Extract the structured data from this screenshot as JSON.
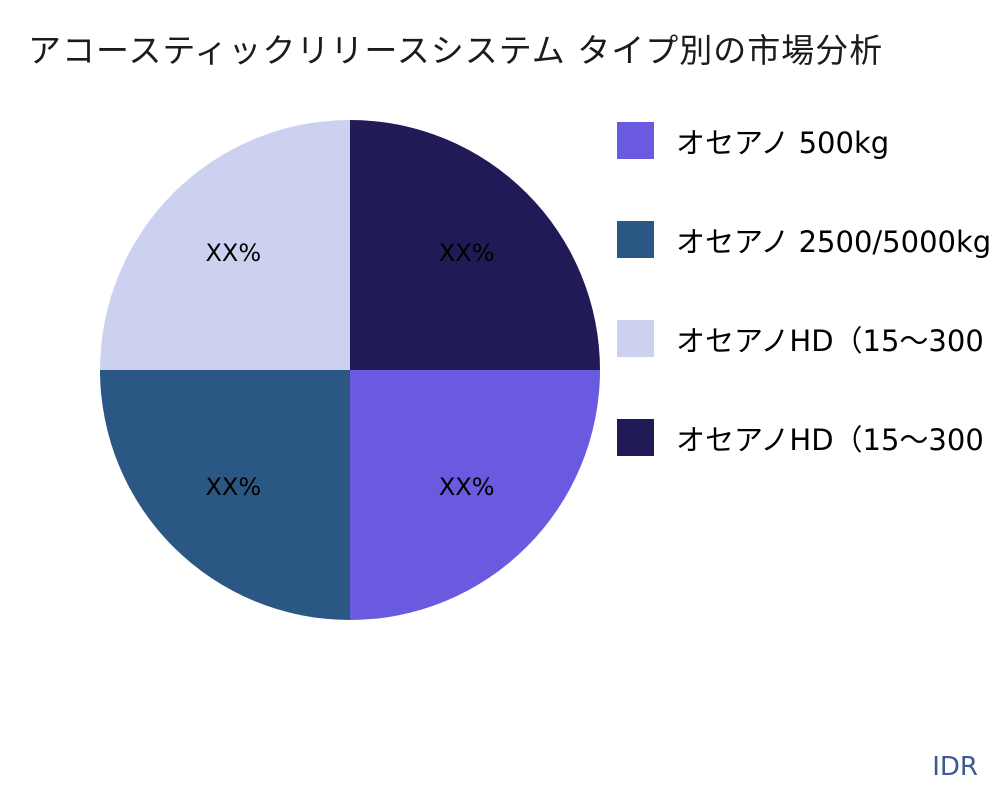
{
  "chart_data": {
    "type": "pie",
    "title": "アコースティックリリースシステム タイプ別の市場分析",
    "legend_position": "right",
    "direction": "clockwise",
    "start_angle_deg": 90,
    "slices": [
      {
        "legend_label": "オセアノ 500kg",
        "value_pct": 25,
        "data_label": "XX%",
        "color": "#6A5AE0"
      },
      {
        "legend_label": "オセアノ 2500/5000kg",
        "value_pct": 25,
        "data_label": "XX%",
        "color": "#2A5783"
      },
      {
        "legend_label": "オセアノHD（15～300",
        "value_pct": 25,
        "data_label": "XX%",
        "color": "#CDD1F0"
      },
      {
        "legend_label": "オセアノHD（15～300",
        "value_pct": 25,
        "data_label": "XX%",
        "color": "#201A57"
      }
    ]
  },
  "footer": {
    "currency_label": "IDR"
  }
}
